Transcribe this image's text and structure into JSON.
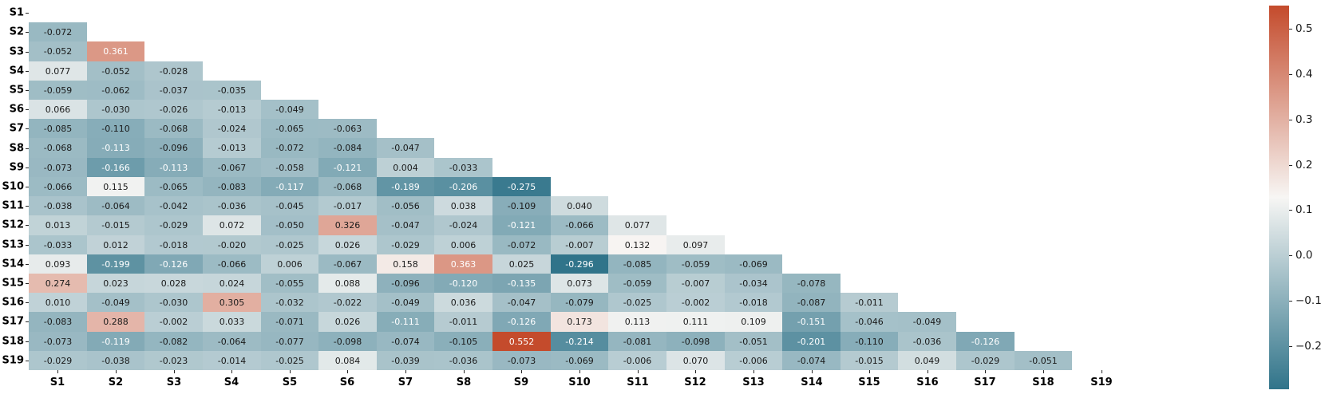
{
  "chart_data": {
    "type": "heatmap",
    "title": "",
    "description": "Lower-triangular correlation matrix heatmap with numeric annotations",
    "labels": [
      "S1",
      "S2",
      "S3",
      "S4",
      "S5",
      "S6",
      "S7",
      "S8",
      "S9",
      "S10",
      "S11",
      "S12",
      "S13",
      "S14",
      "S15",
      "S16",
      "S17",
      "S18",
      "S19"
    ],
    "rows": [
      {
        "label": "S1",
        "values": []
      },
      {
        "label": "S2",
        "values": [
          -0.072
        ]
      },
      {
        "label": "S3",
        "values": [
          -0.052,
          0.361
        ]
      },
      {
        "label": "S4",
        "values": [
          0.077,
          -0.052,
          -0.028
        ]
      },
      {
        "label": "S5",
        "values": [
          -0.059,
          -0.062,
          -0.037,
          -0.035
        ]
      },
      {
        "label": "S6",
        "values": [
          0.066,
          -0.03,
          -0.026,
          -0.013,
          -0.049
        ]
      },
      {
        "label": "S7",
        "values": [
          -0.085,
          -0.11,
          -0.068,
          -0.024,
          -0.065,
          -0.063
        ]
      },
      {
        "label": "S8",
        "values": [
          -0.068,
          -0.113,
          -0.096,
          -0.013,
          -0.072,
          -0.084,
          -0.047
        ]
      },
      {
        "label": "S9",
        "values": [
          -0.073,
          -0.166,
          -0.113,
          -0.067,
          -0.058,
          -0.121,
          0.004,
          -0.033
        ]
      },
      {
        "label": "S10",
        "values": [
          -0.066,
          0.115,
          -0.065,
          -0.083,
          -0.117,
          -0.068,
          -0.189,
          -0.206,
          -0.275
        ]
      },
      {
        "label": "S11",
        "values": [
          -0.038,
          -0.064,
          -0.042,
          -0.036,
          -0.045,
          -0.017,
          -0.056,
          0.038,
          -0.109,
          0.04
        ]
      },
      {
        "label": "S12",
        "values": [
          0.013,
          -0.015,
          -0.029,
          0.072,
          -0.05,
          0.326,
          -0.047,
          -0.024,
          -0.121,
          -0.066,
          0.077
        ]
      },
      {
        "label": "S13",
        "values": [
          -0.033,
          0.012,
          -0.018,
          -0.02,
          -0.025,
          0.026,
          -0.029,
          0.006,
          -0.072,
          -0.007,
          0.132,
          0.097
        ]
      },
      {
        "label": "S14",
        "values": [
          0.093,
          -0.199,
          -0.126,
          -0.066,
          0.006,
          -0.067,
          0.158,
          0.363,
          0.025,
          -0.296,
          -0.085,
          -0.059,
          -0.069
        ]
      },
      {
        "label": "S15",
        "values": [
          0.274,
          0.023,
          0.028,
          0.024,
          -0.055,
          0.088,
          -0.096,
          -0.12,
          -0.135,
          0.073,
          -0.059,
          -0.007,
          -0.034,
          -0.078
        ]
      },
      {
        "label": "S16",
        "values": [
          0.01,
          -0.049,
          -0.03,
          0.305,
          -0.032,
          -0.022,
          -0.049,
          0.036,
          -0.047,
          -0.079,
          -0.025,
          -0.002,
          -0.018,
          -0.087,
          -0.011
        ]
      },
      {
        "label": "S17",
        "values": [
          -0.083,
          0.288,
          -0.002,
          0.033,
          -0.071,
          0.026,
          -0.111,
          -0.011,
          -0.126,
          0.173,
          0.113,
          0.111,
          0.109,
          -0.151,
          -0.046,
          -0.049
        ]
      },
      {
        "label": "S18",
        "values": [
          -0.073,
          -0.119,
          -0.082,
          -0.064,
          -0.077,
          -0.098,
          -0.074,
          -0.105,
          0.552,
          -0.214,
          -0.081,
          -0.098,
          -0.051,
          -0.201,
          -0.11,
          -0.036,
          -0.126
        ]
      },
      {
        "label": "S19",
        "values": [
          -0.029,
          -0.038,
          -0.023,
          -0.014,
          -0.025,
          0.084,
          -0.039,
          -0.036,
          -0.073,
          -0.069,
          -0.006,
          0.07,
          -0.006,
          -0.074,
          -0.015,
          0.049,
          -0.029,
          -0.051
        ]
      }
    ],
    "vmin": -0.296,
    "vmax": 0.552,
    "value_decimals": 3,
    "colorbar_ticks": [
      0.5,
      0.4,
      0.3,
      0.2,
      0.1,
      0.0,
      -0.1,
      -0.2
    ],
    "legend_position": "right",
    "grid": false,
    "colors": {
      "negative_end": "#30748A",
      "center": "#F7F6F4",
      "positive_end": "#C44B2C",
      "annotation_dark": "#1A1A1A",
      "annotation_light": "#FFFFFF",
      "axis_text": "#000000"
    }
  }
}
